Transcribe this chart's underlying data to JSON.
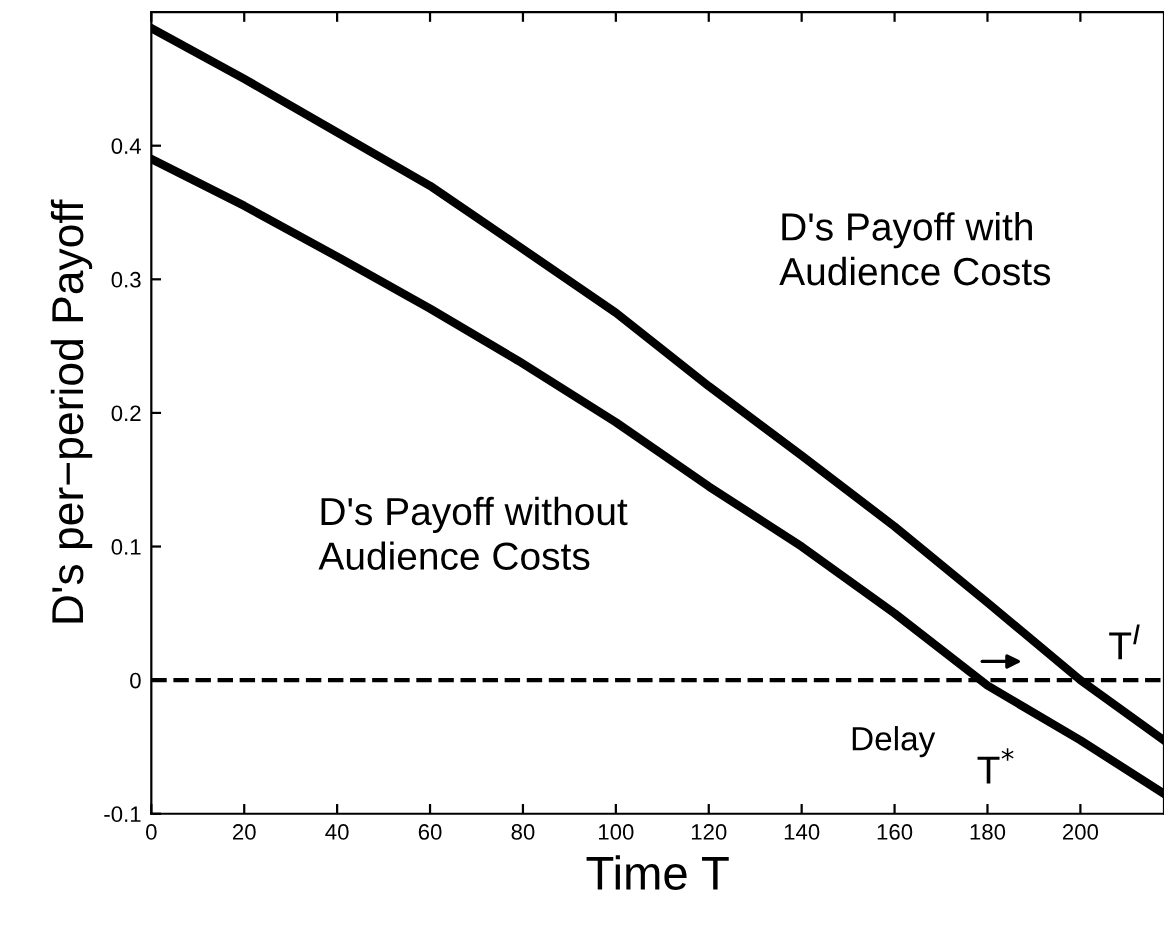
{
  "chart_data": {
    "type": "line",
    "xlabel": "Time T",
    "ylabel": "D's per−period Payoff",
    "x": [
      0,
      20,
      40,
      60,
      79,
      100,
      120,
      140,
      160,
      180,
      200,
      218
    ],
    "series": [
      {
        "color": "#000000",
        "values": [
          0.488,
          0.45,
          0.41,
          0.37,
          0.325,
          0.275,
          0.22,
          0.168,
          0.115,
          0.058,
          0.0,
          -0.045
        ]
      },
      {
        "color": "#000000",
        "values": [
          0.39,
          0.355,
          0.317,
          0.278,
          0.239,
          0.193,
          0.145,
          0.1,
          0.05,
          -0.004,
          -0.045,
          -0.085
        ]
      }
    ],
    "xlim": [
      0,
      218
    ],
    "ylim": [
      -0.1,
      0.5
    ],
    "xticks": [
      0,
      20,
      40,
      60,
      80,
      100,
      120,
      140,
      160,
      180,
      200
    ],
    "yticks": [
      {
        "value": -0.1,
        "label": "-0.1"
      },
      0,
      0.1,
      0.2,
      0.3,
      0.4
    ],
    "ref_lines": [
      {
        "axis": "y",
        "value": 0,
        "line_style": "dashed",
        "color": "#000000"
      }
    ],
    "annotations": [
      "D's Payoff with\nAudience Costs",
      "D's Payoff without\nAudience Costs",
      "Delay",
      "T$^{I}$",
      "T$^{*}$"
    ],
    "grid": false,
    "legend": false,
    "marker": "none",
    "line_style": "solid"
  }
}
